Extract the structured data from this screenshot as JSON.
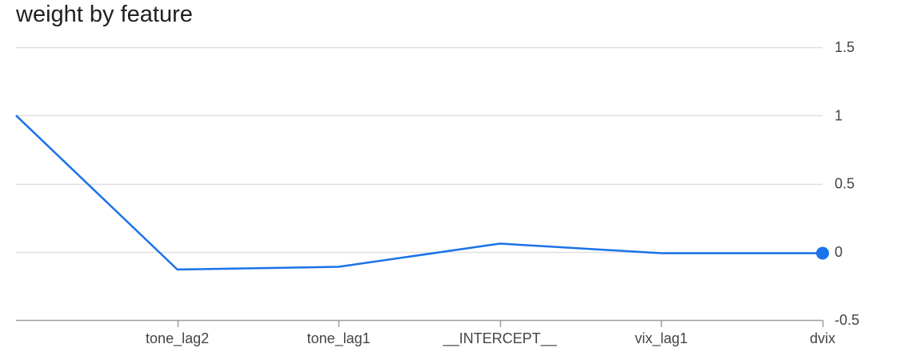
{
  "chart_data": {
    "type": "line",
    "title": "weight by feature",
    "xlabel": "",
    "ylabel": "",
    "x": [
      "",
      "tone_lag2",
      "tone_lag1",
      "__INTERCEPT__",
      "vix_lag1",
      "dvix"
    ],
    "series": [
      {
        "values": [
          1.0,
          -0.13,
          -0.11,
          0.06,
          -0.01,
          -0.01
        ]
      }
    ],
    "ylim": [
      -0.5,
      1.5
    ],
    "yticks": [
      1.5,
      1,
      0.5,
      0,
      -0.5
    ],
    "grid": true,
    "line_color": "#1a73e8",
    "grid_color": "#e0e0e0",
    "axis_color": "#9e9e9e"
  }
}
